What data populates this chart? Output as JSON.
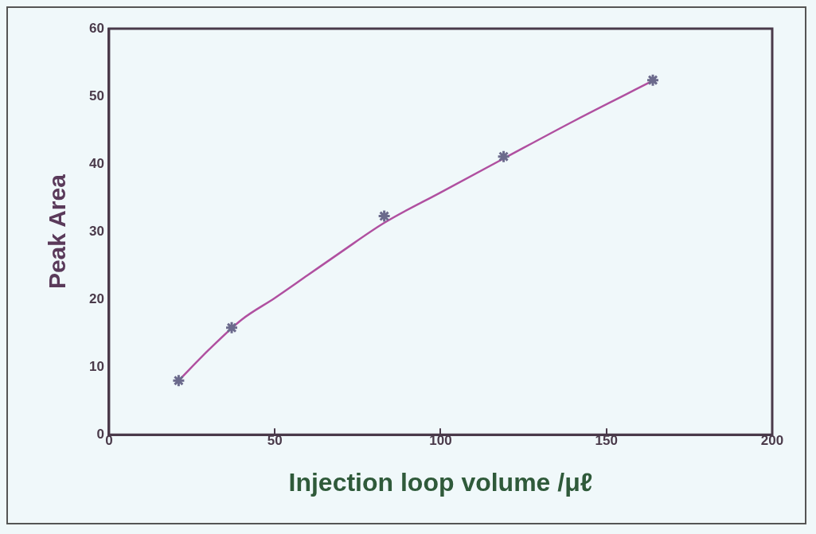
{
  "chart_data": {
    "type": "scatter",
    "xlabel": "Injection loop volume /μℓ",
    "ylabel": "Peak Area",
    "xlim": [
      0,
      200
    ],
    "xticks": [
      0,
      50,
      100,
      150,
      200
    ],
    "ylim": [
      0,
      60
    ],
    "yticks": [
      0,
      10,
      20,
      30,
      40,
      50,
      60
    ],
    "grid": false,
    "legend": false,
    "marker": "cross",
    "series": [
      {
        "color": "#6b6a8c",
        "x": [
          21,
          37,
          83,
          119,
          164
        ],
        "values": [
          8,
          15.8,
          32.3,
          41.1,
          52.4
        ]
      },
      {
        "type": "line",
        "color": "#b050a0",
        "marker": "none",
        "x": [
          21,
          30,
          40,
          50,
          60,
          70,
          83,
          100,
          119,
          140,
          164
        ],
        "values": [
          8,
          12.5,
          17,
          20.2,
          23.6,
          27,
          31.3,
          35.8,
          40.8,
          46.3,
          52.3
        ]
      }
    ]
  }
}
